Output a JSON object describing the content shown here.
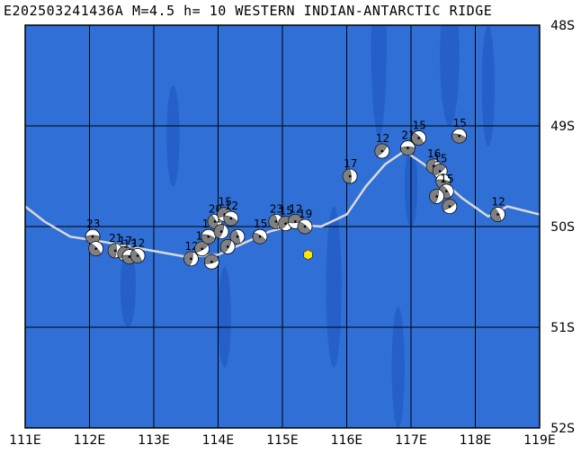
{
  "header": {
    "title": "E202503241436A  M=4.5  h=  10  WESTERN INDIAN-ANTARCTIC RIDGE"
  },
  "colors": {
    "ocean": "#2f6fd6",
    "ocean_shade": "#1f58c4",
    "grid": "#000000",
    "ridge": "#d9d9d9",
    "event_marker": "#ffe600"
  },
  "map": {
    "lon_range": [
      111,
      119
    ],
    "lat_range": [
      -48,
      -52
    ],
    "lon_labels": [
      "111E",
      "112E",
      "113E",
      "114E",
      "115E",
      "116E",
      "117E",
      "118E",
      "119E"
    ],
    "lat_labels": [
      "48S",
      "49S",
      "50S",
      "51S",
      "52S"
    ],
    "event_location": {
      "lon": 115.4,
      "lat": -50.28
    },
    "ridge_line": [
      [
        111.0,
        -49.8
      ],
      [
        111.3,
        -49.95
      ],
      [
        111.7,
        -50.1
      ],
      [
        112.2,
        -50.15
      ],
      [
        112.8,
        -50.22
      ],
      [
        113.5,
        -50.3
      ],
      [
        114.0,
        -50.28
      ],
      [
        114.8,
        -50.05
      ],
      [
        115.2,
        -49.98
      ],
      [
        115.6,
        -50.0
      ],
      [
        116.0,
        -49.88
      ],
      [
        116.3,
        -49.6
      ],
      [
        116.6,
        -49.38
      ],
      [
        116.9,
        -49.25
      ],
      [
        117.2,
        -49.38
      ],
      [
        117.5,
        -49.55
      ],
      [
        117.8,
        -49.72
      ],
      [
        118.2,
        -49.9
      ],
      [
        118.5,
        -49.8
      ],
      [
        119.0,
        -49.88
      ]
    ],
    "beachballs": [
      {
        "lon": 112.05,
        "lat": -50.1,
        "label": "23"
      },
      {
        "lon": 112.1,
        "lat": -50.22,
        "label": ""
      },
      {
        "lon": 112.4,
        "lat": -50.24,
        "label": "21"
      },
      {
        "lon": 112.55,
        "lat": -50.27,
        "label": "17"
      },
      {
        "lon": 112.62,
        "lat": -50.3,
        "label": "13"
      },
      {
        "lon": 112.75,
        "lat": -50.29,
        "label": "12"
      },
      {
        "lon": 113.58,
        "lat": -50.32,
        "label": "12"
      },
      {
        "lon": 113.75,
        "lat": -50.22,
        "label": "15"
      },
      {
        "lon": 113.85,
        "lat": -50.1,
        "label": "17"
      },
      {
        "lon": 113.95,
        "lat": -49.95,
        "label": "20"
      },
      {
        "lon": 114.05,
        "lat": -50.05,
        "label": "17"
      },
      {
        "lon": 114.1,
        "lat": -49.88,
        "label": "15"
      },
      {
        "lon": 114.2,
        "lat": -49.92,
        "label": "12"
      },
      {
        "lon": 114.3,
        "lat": -50.1,
        "label": ""
      },
      {
        "lon": 114.15,
        "lat": -50.2,
        "label": ""
      },
      {
        "lon": 113.9,
        "lat": -50.35,
        "label": ""
      },
      {
        "lon": 114.65,
        "lat": -50.1,
        "label": "15"
      },
      {
        "lon": 114.9,
        "lat": -49.95,
        "label": "23"
      },
      {
        "lon": 115.05,
        "lat": -49.97,
        "label": "15"
      },
      {
        "lon": 115.2,
        "lat": -49.95,
        "label": "12"
      },
      {
        "lon": 115.35,
        "lat": -50.0,
        "label": "19"
      },
      {
        "lon": 116.05,
        "lat": -49.5,
        "label": "17"
      },
      {
        "lon": 116.55,
        "lat": -49.25,
        "label": "12"
      },
      {
        "lon": 116.95,
        "lat": -49.22,
        "label": "21"
      },
      {
        "lon": 117.12,
        "lat": -49.12,
        "label": "15"
      },
      {
        "lon": 117.35,
        "lat": -49.4,
        "label": "16"
      },
      {
        "lon": 117.45,
        "lat": -49.45,
        "label": "15"
      },
      {
        "lon": 117.5,
        "lat": -49.55,
        "label": ""
      },
      {
        "lon": 117.55,
        "lat": -49.65,
        "label": "15"
      },
      {
        "lon": 117.4,
        "lat": -49.7,
        "label": ""
      },
      {
        "lon": 117.6,
        "lat": -49.8,
        "label": ""
      },
      {
        "lon": 117.75,
        "lat": -49.1,
        "label": "15"
      },
      {
        "lon": 118.35,
        "lat": -49.88,
        "label": "12"
      }
    ]
  }
}
